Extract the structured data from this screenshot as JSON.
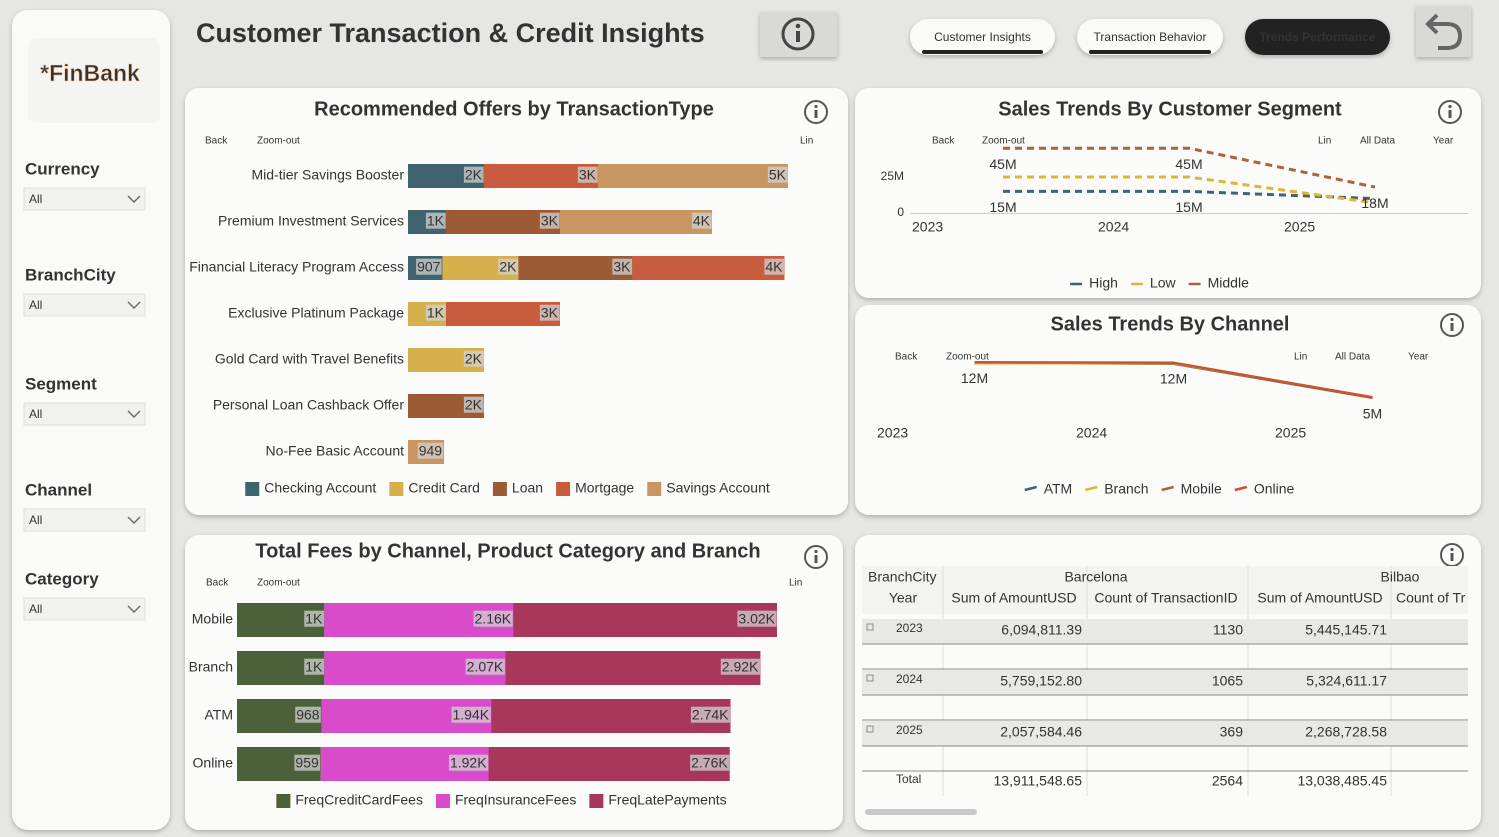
{
  "header": {
    "title": "Customer Transaction & Credit Insights",
    "nav": [
      "Customer Insights",
      "Transaction Behavior",
      "Trends Performance"
    ]
  },
  "sidebar": {
    "logo": "*FinBank",
    "filters": [
      {
        "label": "Currency",
        "value": "All"
      },
      {
        "label": "BranchCity",
        "value": "All"
      },
      {
        "label": "Segment",
        "value": "All"
      },
      {
        "label": "Channel",
        "value": "All"
      },
      {
        "label": "Category",
        "value": "All"
      }
    ]
  },
  "chart_data": [
    {
      "type": "bar",
      "orientation": "horizontal",
      "stacked": true,
      "title": "Recommended Offers by TransactionType",
      "toolbar": [
        "Back",
        "Zoom-out",
        "Lin"
      ],
      "categories": [
        "Mid-tier Savings Booster",
        "Premium Investment Services",
        "Financial Literacy Program Access",
        "Exclusive Platinum Package",
        "Gold Card with Travel Benefits",
        "Personal Loan Cashback Offer",
        "No-Fee Basic Account"
      ],
      "series": [
        {
          "name": "Checking Account",
          "color": "#3f6470",
          "values": [
            2000,
            1000,
            907,
            null,
            null,
            null,
            null
          ],
          "value_labels": [
            "2K",
            "1K",
            "907",
            null,
            null,
            null,
            null
          ]
        },
        {
          "name": "Credit Card",
          "color": "#d6b04a",
          "values": [
            null,
            null,
            2000,
            1000,
            2000,
            null,
            null
          ],
          "value_labels": [
            null,
            null,
            "2K",
            "1K",
            "2K",
            null,
            null
          ]
        },
        {
          "name": "Loan",
          "color": "#9c5a35",
          "values": [
            null,
            3000,
            3000,
            null,
            null,
            2000,
            null
          ],
          "value_labels": [
            null,
            "3K",
            "3K",
            null,
            null,
            "2K",
            null
          ]
        },
        {
          "name": "Mortgage",
          "color": "#c95b3f",
          "values": [
            3000,
            null,
            4000,
            3000,
            null,
            null,
            null
          ],
          "value_labels": [
            "3K",
            null,
            "4K",
            "3K",
            null,
            null,
            null
          ]
        },
        {
          "name": "Savings Account",
          "color": "#c99662",
          "values": [
            5000,
            4000,
            null,
            null,
            null,
            null,
            949
          ],
          "value_labels": [
            "5K",
            "4K",
            null,
            null,
            null,
            null,
            "949"
          ]
        }
      ]
    },
    {
      "type": "line",
      "line_style": "dashed",
      "title": "Sales Trends By Customer Segment",
      "toolbar": [
        "Back",
        "Zoom-out",
        "Lin",
        "All Data",
        "Year"
      ],
      "categories": [
        "2023",
        "2024",
        "2025"
      ],
      "ylim": [
        0,
        50000000
      ],
      "yticks": [
        0,
        {
          "value": 25000000,
          "label": "25M"
        }
      ],
      "series": [
        {
          "name": "High",
          "color": "#3f6470",
          "values": [
            15000000,
            15000000,
            10000000
          ],
          "value_labels": [
            "15M",
            "15M",
            null
          ]
        },
        {
          "name": "Low",
          "color": "#e0b43a",
          "values": [
            25000000,
            25000000,
            7000000
          ]
        },
        {
          "name": "Middle",
          "color": "#b0603a",
          "values": [
            45000000,
            45000000,
            18000000
          ],
          "value_labels": [
            "45M",
            "45M",
            "18M"
          ]
        }
      ]
    },
    {
      "type": "line",
      "line_style": "solid",
      "title": "Sales Trends By Channel",
      "toolbar": [
        "Back",
        "Zoom-out",
        "Lin",
        "All Data",
        "Year"
      ],
      "categories": [
        "2023",
        "2024",
        "2025"
      ],
      "series": [
        {
          "name": "ATM",
          "color": "#3f6470",
          "values": [
            12100000,
            11900000,
            5000000
          ]
        },
        {
          "name": "Branch",
          "color": "#e0b43a",
          "values": [
            12000000,
            12000000,
            5100000
          ]
        },
        {
          "name": "Mobile",
          "color": "#b0603a",
          "values": [
            12300000,
            12200000,
            5200000
          ]
        },
        {
          "name": "Online",
          "color": "#d0502e",
          "values": [
            12200000,
            12100000,
            5000000
          ],
          "value_labels": [
            "12M",
            "12M",
            "5M"
          ]
        }
      ]
    },
    {
      "type": "bar",
      "orientation": "horizontal",
      "stacked": true,
      "title": "Total Fees by Channel, Product Category and Branch",
      "toolbar": [
        "Back",
        "Zoom-out",
        "Lin"
      ],
      "categories": [
        "Mobile",
        "Branch",
        "ATM",
        "Online"
      ],
      "series": [
        {
          "name": "FreqCreditCardFees",
          "color": "#4c6139",
          "values": [
            1000,
            1000,
            968,
            959
          ],
          "value_labels": [
            "1K",
            "1K",
            "968",
            "959"
          ]
        },
        {
          "name": "FreqInsuranceFees",
          "color": "#d84ccb",
          "values": [
            2160,
            2070,
            1940,
            1920
          ],
          "value_labels": [
            "2.16K",
            "2.07K",
            "1.94K",
            "1.92K"
          ]
        },
        {
          "name": "FreqLatePayments",
          "color": "#a8385b",
          "values": [
            3020,
            2920,
            2740,
            2760
          ],
          "value_labels": [
            "3.02K",
            "2.92K",
            "2.74K",
            "2.76K"
          ]
        }
      ]
    }
  ],
  "table": {
    "header_row1": [
      "BranchCity",
      "Barcelona",
      "Bilbao"
    ],
    "header_row2": [
      "Year",
      "Sum of AmountUSD",
      "Count of TransactionID",
      "Sum of AmountUSD",
      "Count of Tr"
    ],
    "rows": [
      [
        "2023",
        "6,094,811.39",
        "1130",
        "5,445,145.71"
      ],
      [
        "2024",
        "5,759,152.80",
        "1065",
        "5,324,611.17"
      ],
      [
        "2025",
        "2,057,584.46",
        "369",
        "2,268,728.58"
      ],
      [
        "Total",
        "13,911,548.65",
        "2564",
        "13,038,485.45"
      ]
    ]
  }
}
